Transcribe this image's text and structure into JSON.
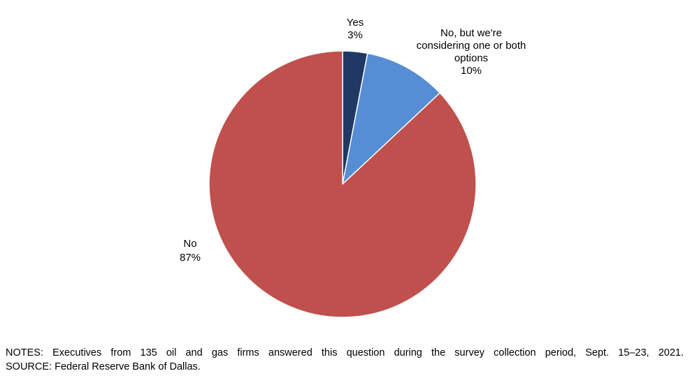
{
  "chart_data": {
    "type": "pie",
    "title": "",
    "slices": [
      {
        "label": "Yes",
        "value": 3,
        "value_label": "3%",
        "color": "#1F3864"
      },
      {
        "label_lines": [
          "No, but we're",
          "considering one or both",
          "options"
        ],
        "label": "No, but we're considering one or both options",
        "value": 10,
        "value_label": "10%",
        "color": "#558ED5"
      },
      {
        "label": "No",
        "value": 87,
        "value_label": "87%",
        "color": "#C0504D"
      }
    ],
    "start_angle": "12 o'clock",
    "direction": "clockwise",
    "legend": "none"
  },
  "notes": {
    "line1": "NOTES: Executives from 135 oil and gas firms answered this question during the survey collection period, Sept. 15–23, 2021.",
    "line2": "SOURCE: Federal Reserve Bank of Dallas."
  }
}
